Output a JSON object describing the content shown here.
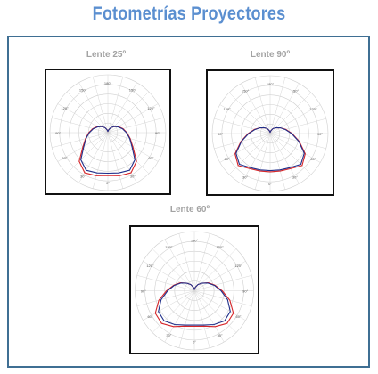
{
  "page": {
    "title": "Fotometrías Proyectores"
  },
  "chart_data": [
    {
      "type": "polar",
      "title": "Lente 25º",
      "angle_labels": [
        "180°",
        "150°",
        "120°",
        "90°",
        "60°",
        "30°",
        "0°",
        "30°",
        "60°",
        "90°",
        "120°",
        "150°"
      ],
      "series": [
        {
          "color": "#d7262a",
          "r": [
            [
              0,
              0.74
            ],
            [
              15,
              0.77
            ],
            [
              30,
              0.8
            ],
            [
              45,
              0.7
            ],
            [
              60,
              0.5
            ],
            [
              75,
              0.4
            ],
            [
              90,
              0.33
            ],
            [
              105,
              0.27
            ],
            [
              120,
              0.21
            ],
            [
              135,
              0.15
            ],
            [
              150,
              0.1
            ],
            [
              165,
              0.05
            ],
            [
              180,
              0.02
            ]
          ]
        },
        {
          "color": "#1f2f8a",
          "r": [
            [
              0,
              0.7
            ],
            [
              15,
              0.72
            ],
            [
              30,
              0.75
            ],
            [
              45,
              0.66
            ],
            [
              60,
              0.48
            ],
            [
              75,
              0.39
            ],
            [
              90,
              0.32
            ],
            [
              105,
              0.26
            ],
            [
              120,
              0.2
            ],
            [
              135,
              0.15
            ],
            [
              150,
              0.1
            ],
            [
              165,
              0.05
            ],
            [
              180,
              0.02
            ]
          ]
        }
      ]
    },
    {
      "type": "polar",
      "title": "Lente 90º",
      "angle_labels": [
        "180°",
        "150°",
        "120°",
        "90°",
        "60°",
        "30°",
        "0°",
        "30°",
        "60°",
        "90°",
        "120°",
        "150°"
      ],
      "series": [
        {
          "color": "#d7262a",
          "r": [
            [
              0,
              0.66
            ],
            [
              15,
              0.67
            ],
            [
              30,
              0.7
            ],
            [
              45,
              0.78
            ],
            [
              60,
              0.7
            ],
            [
              75,
              0.52
            ],
            [
              90,
              0.38
            ],
            [
              105,
              0.28
            ],
            [
              120,
              0.2
            ],
            [
              135,
              0.14
            ],
            [
              150,
              0.1
            ],
            [
              165,
              0.05
            ],
            [
              180,
              0.02
            ]
          ]
        },
        {
          "color": "#1f2f8a",
          "r": [
            [
              0,
              0.64
            ],
            [
              15,
              0.65
            ],
            [
              30,
              0.68
            ],
            [
              45,
              0.75
            ],
            [
              60,
              0.68
            ],
            [
              75,
              0.51
            ],
            [
              90,
              0.37
            ],
            [
              105,
              0.27
            ],
            [
              120,
              0.2
            ],
            [
              135,
              0.14
            ],
            [
              150,
              0.1
            ],
            [
              165,
              0.05
            ],
            [
              180,
              0.02
            ]
          ]
        }
      ]
    },
    {
      "type": "polar",
      "title": "Lente 60º",
      "angle_labels": [
        "180°",
        "150°",
        "120°",
        "90°",
        "60°",
        "30°",
        "0°",
        "30°",
        "60°",
        "90°",
        "120°",
        "150°"
      ],
      "series": [
        {
          "color": "#d7262a",
          "r": [
            [
              0,
              0.6
            ],
            [
              15,
              0.62
            ],
            [
              30,
              0.7
            ],
            [
              45,
              0.78
            ],
            [
              60,
              0.76
            ],
            [
              75,
              0.62
            ],
            [
              90,
              0.47
            ],
            [
              105,
              0.36
            ],
            [
              120,
              0.27
            ],
            [
              135,
              0.18
            ],
            [
              150,
              0.12
            ],
            [
              165,
              0.06
            ],
            [
              180,
              0.02
            ]
          ]
        },
        {
          "color": "#1f2f8a",
          "r": [
            [
              0,
              0.58
            ],
            [
              15,
              0.6
            ],
            [
              30,
              0.66
            ],
            [
              45,
              0.72
            ],
            [
              60,
              0.7
            ],
            [
              75,
              0.58
            ],
            [
              90,
              0.45
            ],
            [
              105,
              0.35
            ],
            [
              120,
              0.26
            ],
            [
              135,
              0.18
            ],
            [
              150,
              0.12
            ],
            [
              165,
              0.06
            ],
            [
              180,
              0.02
            ]
          ]
        }
      ]
    }
  ]
}
